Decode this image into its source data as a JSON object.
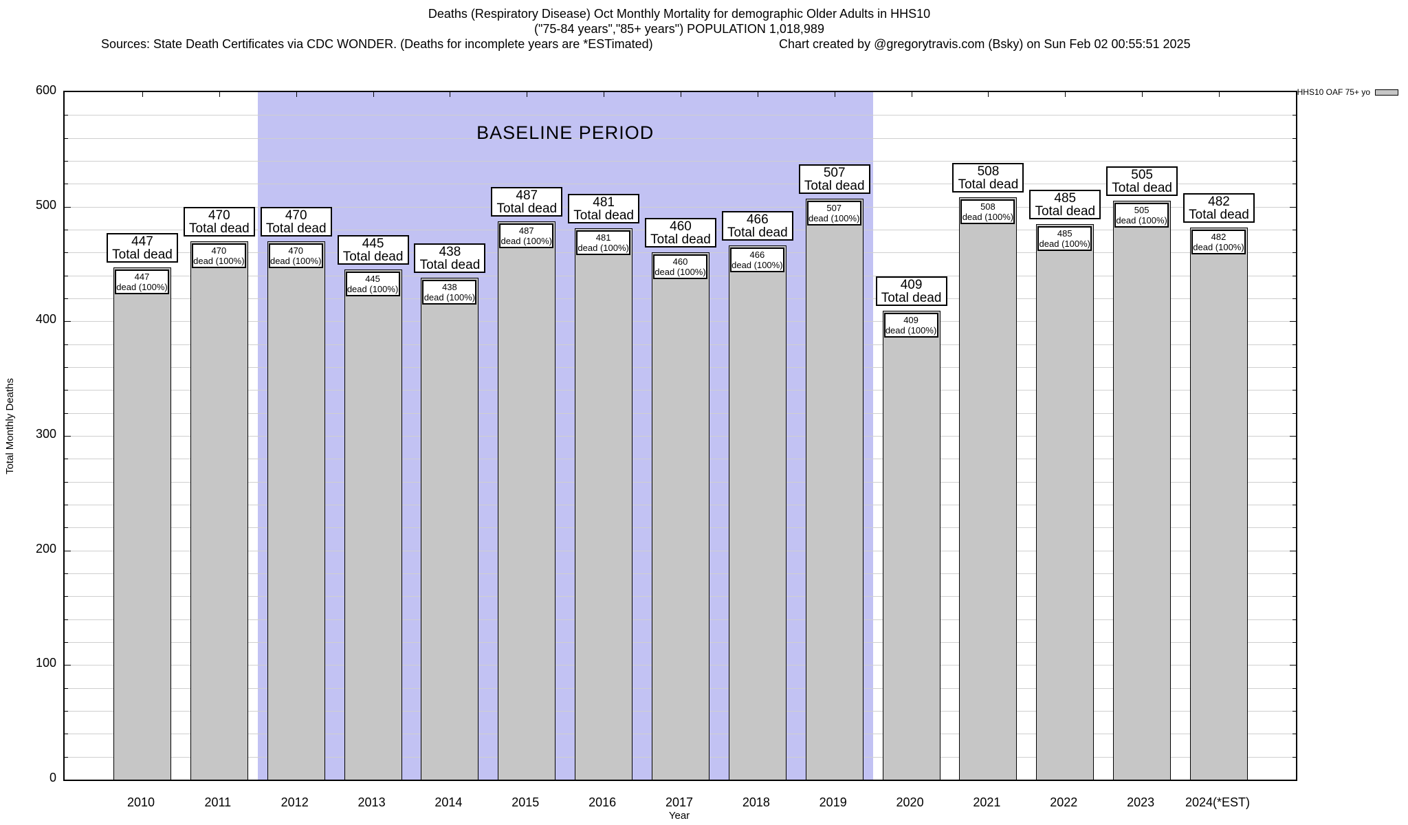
{
  "header": {
    "title_line1": "Deaths (Respiratory Disease) Oct Monthly Mortality for demographic Older Adults in HHS10",
    "title_line2": "(\"75-84 years\",\"85+ years\") POPULATION 1,018,989",
    "sources_note": "Sources: State Death Certificates via CDC WONDER. (Deaths for incomplete years are *ESTimated)",
    "credit": "Chart created by @gregorytravis.com (Bsky) on Sun Feb 02 00:55:51 2025"
  },
  "chart_data": {
    "type": "bar",
    "title": "Deaths (Respiratory Disease) Oct Monthly Mortality for demographic Older Adults in HHS10",
    "subtitle": "(\"75-84 years\",\"85+ years\") POPULATION 1,018,989",
    "xlabel": "Year",
    "ylabel": "Total Monthly Deaths",
    "ylim": [
      0,
      600
    ],
    "ytick_step": 100,
    "minor_grid_step": 20,
    "grid": true,
    "legend_position": "top-right",
    "categories": [
      "2010",
      "2011",
      "2012",
      "2013",
      "2014",
      "2015",
      "2016",
      "2017",
      "2018",
      "2019",
      "2020",
      "2021",
      "2022",
      "2023",
      "2024(*EST)"
    ],
    "series": [
      {
        "name": "HHS10 OAF 75+ yo",
        "values": [
          447,
          470,
          470,
          445,
          438,
          487,
          481,
          460,
          466,
          507,
          409,
          508,
          485,
          505,
          482
        ]
      }
    ],
    "bar_color": "#c6c6c6",
    "bar_top_label_line2": "Total dead",
    "bar_inner_label_line2": "dead (100%)",
    "baseline_period": {
      "label": "BASELINE PERIOD",
      "start_category": "2012",
      "end_category": "2019",
      "color": "#c2c2f3"
    },
    "legend": {
      "label": "HHS10 OAF 75+ yo",
      "swatch_color": "#c6c6c6"
    }
  }
}
